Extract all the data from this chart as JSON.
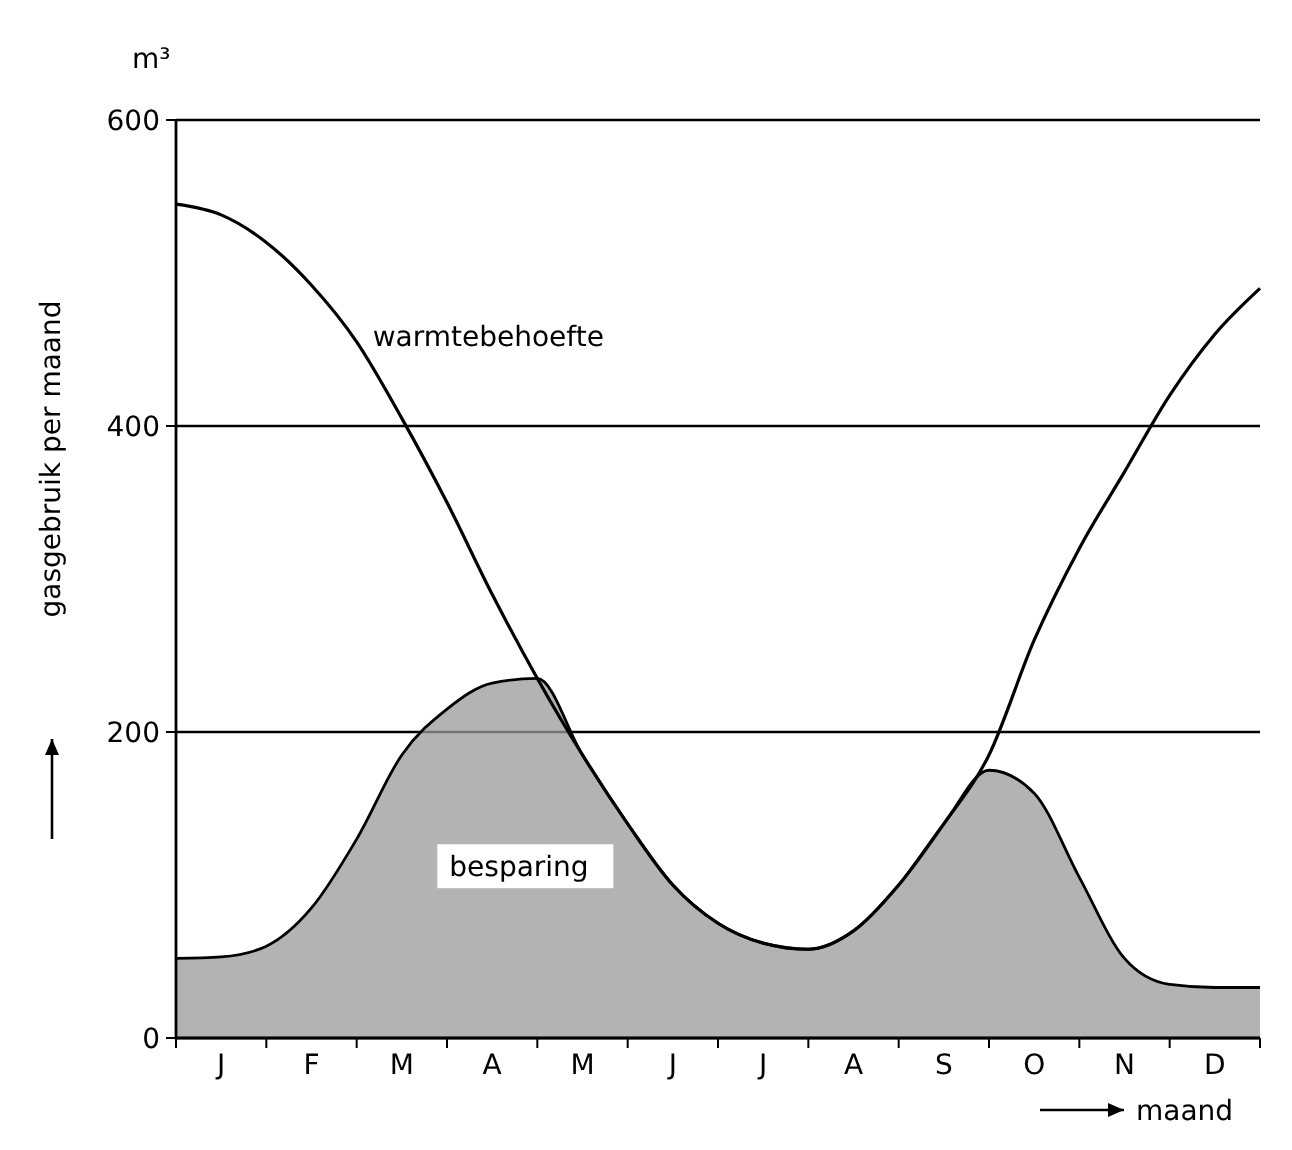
{
  "chart_data": {
    "type": "line",
    "xlabel": "maand",
    "ylabel": "gasgebruik per maand",
    "annotations": [
      "m³"
    ],
    "categories": [
      null,
      "J",
      null,
      "F",
      null,
      "M",
      null,
      "A",
      null,
      "M",
      null,
      "J",
      null,
      "J",
      null,
      "A",
      null,
      "S",
      null,
      "O",
      null,
      "N",
      null,
      "D",
      null
    ],
    "ylim": [
      0,
      600
    ],
    "yticks": [
      0,
      200,
      400,
      600
    ],
    "grid": "y",
    "legend": false,
    "series": [
      {
        "name": "besparing",
        "type": "area",
        "color": "#9a9a9a",
        "values": [
          52,
          53,
          60,
          85,
          130,
          185,
          215,
          232,
          235,
          185,
          140,
          100,
          75,
          62,
          58,
          70,
          100,
          140,
          175,
          160,
          105,
          52,
          35,
          33,
          33
        ]
      },
      {
        "name": "warmtebehoefte",
        "color": "#000000",
        "values": [
          545,
          538,
          520,
          492,
          455,
          405,
          350,
          290,
          235,
          185,
          140,
          100,
          75,
          62,
          58,
          70,
          100,
          140,
          185,
          260,
          320,
          370,
          420,
          460,
          490
        ]
      }
    ]
  }
}
